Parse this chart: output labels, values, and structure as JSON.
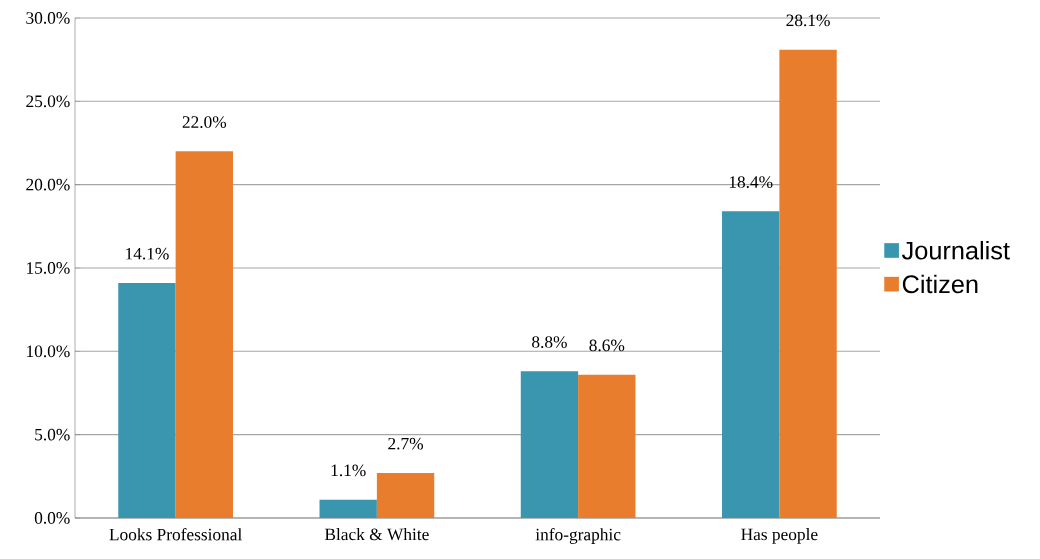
{
  "chart_data": {
    "type": "bar",
    "categories": [
      "Looks Professional",
      "Black & White",
      "info-graphic",
      "Has people"
    ],
    "series": [
      {
        "name": "Journalist",
        "color": "#3a95af",
        "values": [
          14.1,
          1.1,
          8.8,
          18.4
        ],
        "value_labels": [
          "14.1%",
          "1.1%",
          "8.8%",
          "18.4%"
        ]
      },
      {
        "name": "Citizen",
        "color": "#e87e2d",
        "values": [
          22.0,
          2.7,
          8.6,
          28.1
        ],
        "value_labels": [
          "22.0%",
          "2.7%",
          "8.6%",
          "28.1%"
        ]
      }
    ],
    "ylim": [
      0,
      30
    ],
    "yticks": [
      {
        "value": 0,
        "label": "0.0%"
      },
      {
        "value": 5,
        "label": "5.0%"
      },
      {
        "value": 10,
        "label": "10.0%"
      },
      {
        "value": 15,
        "label": "15.0%"
      },
      {
        "value": 20,
        "label": "20.0%"
      },
      {
        "value": 25,
        "label": "25.0%"
      },
      {
        "value": 30,
        "label": "30.0%"
      }
    ],
    "grid": "y",
    "legend": "right"
  }
}
